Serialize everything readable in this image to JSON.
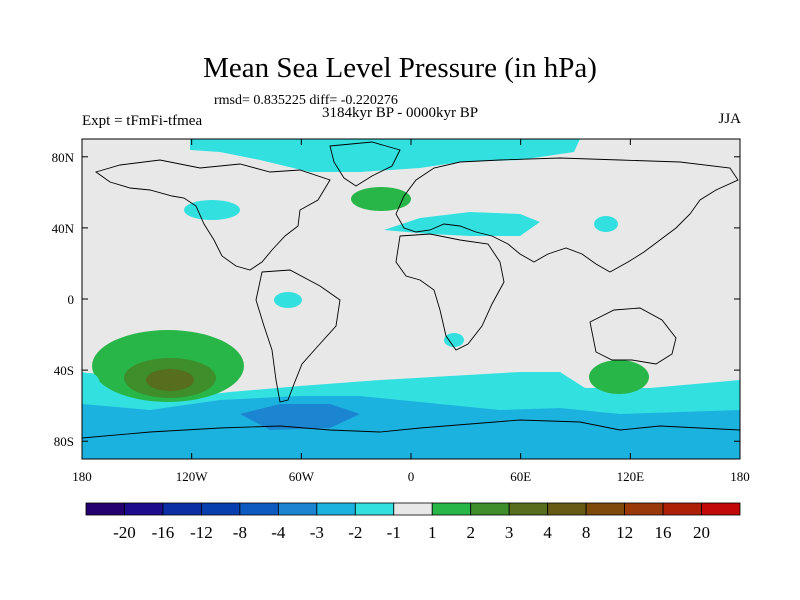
{
  "chart_data": {
    "type": "heatmap",
    "title": "Mean Sea Level Pressure (in hPa)",
    "stats_text": "rmsd= 0.835225  diff= -0.220276",
    "period_text": "3184kyr BP - 0000kyr BP",
    "experiment_text": "Expt = tFmFi-tfmea",
    "season": "JJA",
    "projection": "cylindrical equidistant",
    "lon_range": [
      -180,
      180
    ],
    "lat_range": [
      -90,
      90
    ],
    "x_ticks": [
      {
        "lon": -180,
        "label": "180"
      },
      {
        "lon": -120,
        "label": "120W"
      },
      {
        "lon": -60,
        "label": "60W"
      },
      {
        "lon": 0,
        "label": "0"
      },
      {
        "lon": 60,
        "label": "60E"
      },
      {
        "lon": 120,
        "label": "120E"
      },
      {
        "lon": 180,
        "label": "180"
      }
    ],
    "y_ticks": [
      {
        "lat": 80,
        "label": "80N"
      },
      {
        "lat": 40,
        "label": "40N"
      },
      {
        "lat": 0,
        "label": "0"
      },
      {
        "lat": -40,
        "label": "40S"
      },
      {
        "lat": -80,
        "label": "80S"
      }
    ],
    "colorbar": {
      "colors": [
        "#24006e",
        "#1d0d8c",
        "#0c2ea4",
        "#083fae",
        "#0b5bc0",
        "#1b85d2",
        "#1cb2e0",
        "#33e0e0",
        "#e8e8e8",
        "#28b648",
        "#3f8e2c",
        "#566e1e",
        "#675a14",
        "#7e4a0c",
        "#993808",
        "#ad2006",
        "#c20808"
      ],
      "levels": [
        "-20",
        "-16",
        "-12",
        "-8",
        "-4",
        "-3",
        "-2",
        "-1",
        "1",
        "2",
        "3",
        "4",
        "8",
        "12",
        "16",
        "20"
      ]
    },
    "background_color": "#e8e8e8",
    "anomaly_regions": [
      {
        "name": "south-pacific-high",
        "color": "#28b648",
        "value_range": "1 to 2",
        "center_lon": -132,
        "center_lat": -47,
        "radius_lon": 42,
        "radius_lat": 18
      },
      {
        "name": "south-pacific-high-mid",
        "color": "#3f8e2c",
        "value_range": "2 to 3",
        "center_lon": -130,
        "center_lat": -48,
        "radius_lon": 26,
        "radius_lat": 10
      },
      {
        "name": "south-pacific-high-core",
        "color": "#566e1e",
        "value_range": "3 to 4",
        "center_lon": -128,
        "center_lat": -48,
        "radius_lon": 14,
        "radius_lat": 6
      },
      {
        "name": "north-atlantic-high",
        "color": "#28b648",
        "value_range": "1 to 2",
        "center_lon": -16,
        "center_lat": 53,
        "radius_lon": 16,
        "radius_lat": 6
      },
      {
        "name": "australia-high",
        "color": "#28b648",
        "value_range": "1 to 2",
        "center_lon": 117,
        "center_lat": -45,
        "radius_lon": 16,
        "radius_lat": 9
      }
    ]
  }
}
